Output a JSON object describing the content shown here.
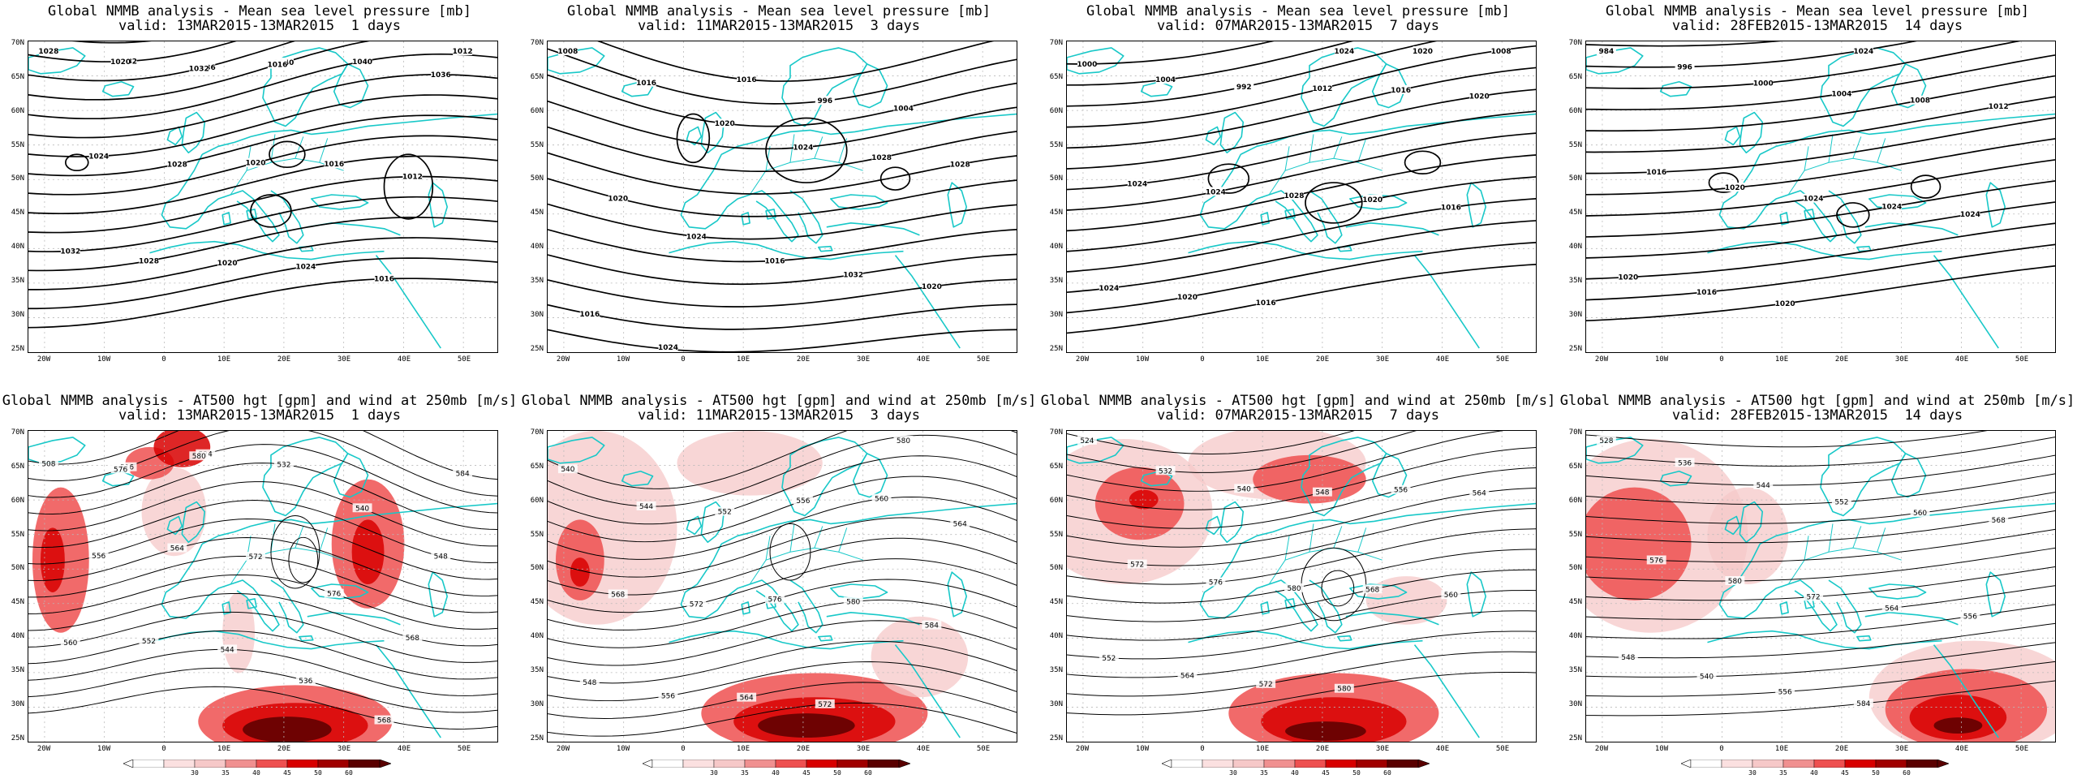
{
  "colors": {
    "coast": "#18c8c8",
    "contour": "#000000",
    "wind_light": "#f6c8c8",
    "wind_mid": "#ee5050",
    "wind_strong": "#d80000",
    "wind_max": "#5a0000",
    "grid": "#b8b8b8"
  },
  "axes": {
    "lat_labels": [
      "70N",
      "65N",
      "60N",
      "55N",
      "50N",
      "45N",
      "40N",
      "35N",
      "30N",
      "25N"
    ],
    "lon_labels": [
      "20W",
      "10W",
      "0",
      "10E",
      "20E",
      "30E",
      "40E",
      "50E"
    ]
  },
  "colorbar": {
    "ticks": [
      "30",
      "35",
      "40",
      "45",
      "50",
      "60"
    ]
  },
  "mslp_panels": [
    {
      "title": "Global NMMB analysis - Mean sea level pressure [mb]",
      "valid": "valid: 13MAR2015-13MAR2015  1 days",
      "labels": [
        "1028",
        "1032",
        "1036",
        "1040",
        "1040",
        "1036",
        "1024",
        "1028",
        "1020",
        "1016",
        "1012",
        "1032",
        "1028",
        "1020",
        "1024",
        "1016",
        "1012",
        "1020",
        "1032",
        "1016"
      ]
    },
    {
      "title": "Global NMMB analysis - Mean sea level pressure [mb]",
      "valid": "valid: 11MAR2015-13MAR2015  3 days",
      "labels": [
        "1008",
        "1016",
        "1020",
        "1024",
        "1028",
        "1028",
        "1020",
        "1024",
        "1016",
        "1032",
        "1020",
        "1016",
        "1024",
        "1016",
        "996",
        "1004"
      ]
    },
    {
      "title": "Global NMMB analysis - Mean sea level pressure [mb]",
      "valid": "valid: 07MAR2015-13MAR2015  7 days",
      "labels": [
        "1000",
        "1004",
        "992",
        "1012",
        "1016",
        "1020",
        "1024",
        "1024",
        "1028",
        "1020",
        "1016",
        "1024",
        "1020",
        "1016",
        "1024",
        "1020",
        "1008"
      ]
    },
    {
      "title": "Global NMMB analysis - Mean sea level pressure [mb]",
      "valid": "valid: 28FEB2015-13MAR2015  14 days",
      "labels": [
        "984",
        "996",
        "1000",
        "1004",
        "1008",
        "1012",
        "1016",
        "1020",
        "1024",
        "1024",
        "1024",
        "1020",
        "1016",
        "1020",
        "1024"
      ]
    }
  ],
  "z500_panels": [
    {
      "title": "Global NMMB analysis - AT500 hgt [gpm] and wind at 250mb [m/s]",
      "valid": "valid: 13MAR2015-13MAR2015  1 days",
      "labels": [
        "508",
        "516",
        "524",
        "532",
        "540",
        "548",
        "556",
        "564",
        "572",
        "576",
        "568",
        "560",
        "552",
        "544",
        "536",
        "568",
        "584",
        "576",
        "580"
      ]
    },
    {
      "title": "Global NMMB analysis - AT500 hgt [gpm] and wind at 250mb [m/s]",
      "valid": "valid: 11MAR2015-13MAR2015  3 days",
      "labels": [
        "540",
        "544",
        "552",
        "556",
        "560",
        "564",
        "568",
        "572",
        "576",
        "580",
        "584",
        "548",
        "556",
        "564",
        "572",
        "580"
      ]
    },
    {
      "title": "Global NMMB analysis - AT500 hgt [gpm] and wind at 250mb [m/s]",
      "valid": "valid: 07MAR2015-13MAR2015  7 days",
      "labels": [
        "524",
        "532",
        "540",
        "548",
        "556",
        "564",
        "572",
        "576",
        "580",
        "568",
        "560",
        "552",
        "564",
        "572",
        "580"
      ]
    },
    {
      "title": "Global NMMB analysis - AT500 hgt [gpm] and wind at 250mb [m/s]",
      "valid": "valid: 28FEB2015-13MAR2015  14 days",
      "labels": [
        "528",
        "536",
        "544",
        "552",
        "560",
        "568",
        "576",
        "580",
        "572",
        "564",
        "556",
        "548",
        "540",
        "556",
        "584"
      ]
    }
  ]
}
